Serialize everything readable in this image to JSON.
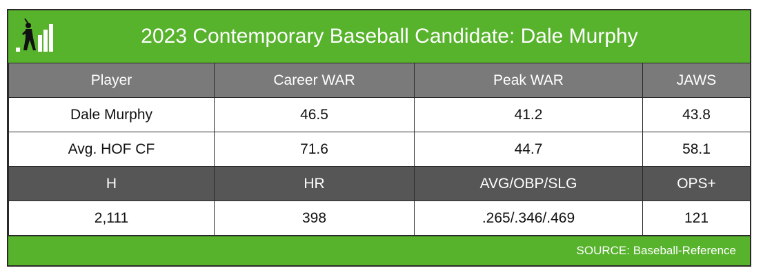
{
  "header": {
    "title": "2023 Contemporary Baseball Candidate: Dale Murphy",
    "logo_icon": "batter-bars-logo-icon"
  },
  "table": {
    "top_headers": [
      "Player",
      "Career WAR",
      "Peak WAR",
      "JAWS"
    ],
    "top_rows": [
      [
        "Dale Murphy",
        "46.5",
        "41.2",
        "43.8"
      ],
      [
        "Avg. HOF CF",
        "71.6",
        "44.7",
        "58.1"
      ]
    ],
    "bottom_headers": [
      "H",
      "HR",
      "AVG/OBP/SLG",
      "OPS+"
    ],
    "bottom_rows": [
      [
        "2,111",
        "398",
        ".265/.346/.469",
        "121"
      ]
    ]
  },
  "footer": {
    "source": "SOURCE: Baseball-Reference"
  },
  "colors": {
    "brand_green": "#57b22c",
    "header_gray": "#7a7a7a",
    "dark_gray": "#565656"
  }
}
